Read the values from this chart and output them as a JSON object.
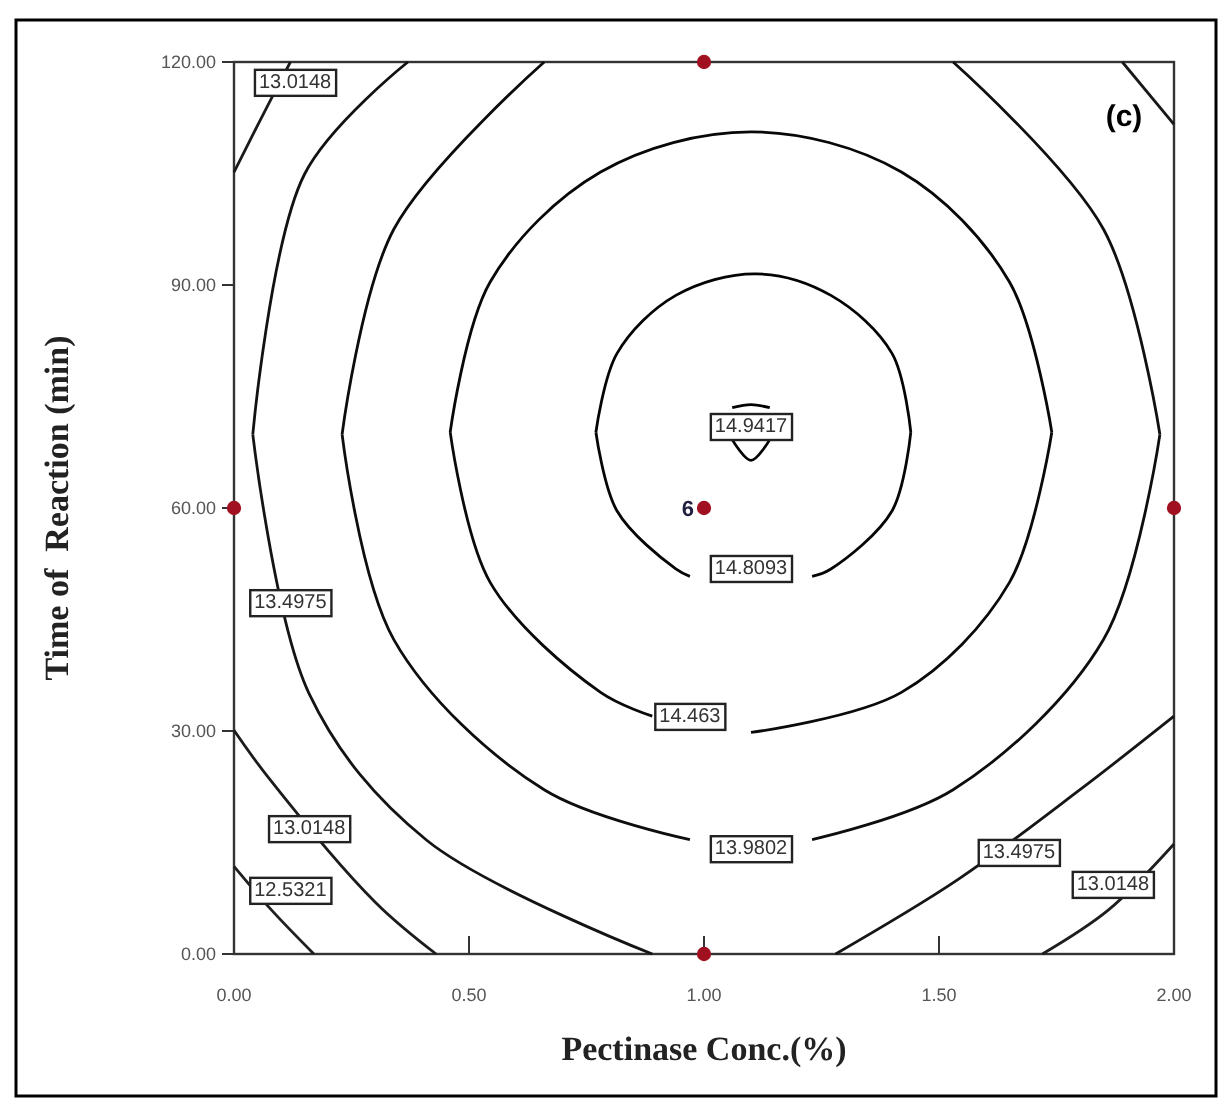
{
  "chart_data": {
    "type": "line",
    "xlabel": "Pectinase Conc.(%)",
    "ylabel": "Time of  Reaction (min)",
    "xlim": [
      0,
      2
    ],
    "xticks": [
      {
        "value": 0,
        "label": "0.00"
      },
      {
        "value": 0.5,
        "label": "0.50"
      },
      {
        "value": 1,
        "label": "1.00"
      },
      {
        "value": 1.5,
        "label": "1.50"
      },
      {
        "value": 2,
        "label": "2.00"
      }
    ],
    "ylim": [
      0,
      120
    ],
    "yticks": [
      {
        "value": 0,
        "label": "0.00"
      },
      {
        "value": 30,
        "label": "30.00"
      },
      {
        "value": 60,
        "label": "60.00"
      },
      {
        "value": 90,
        "label": "90.00"
      },
      {
        "value": 120,
        "label": "120.00"
      }
    ],
    "line_style": "solid",
    "series": [
      {
        "color": "#000000",
        "x": [
          1.06,
          1.1,
          1.14
        ],
        "values": [
          73.5,
          73.9,
          73.5
        ]
      },
      {
        "color": "#020202",
        "x": [
          1.06,
          1.1,
          1.14
        ],
        "values": [
          69.2,
          66.4,
          69.2
        ]
      },
      {
        "color": "#040404",
        "x": [
          0.77,
          0.815,
          0.94,
          1.11,
          1.27,
          1.4,
          1.44
        ],
        "values": [
          70.2,
          80.8,
          88.6,
          91.5,
          88.6,
          80.8,
          70.2
        ]
      },
      {
        "color": "#060606",
        "x": [
          0.77,
          0.815,
          0.94,
          0.97,
          1.11,
          1.23,
          1.27,
          1.4,
          1.44
        ],
        "values": [
          70.2,
          59.6,
          51.8,
          50.8,
          null,
          50.8,
          51.8,
          59.6,
          70.2
        ]
      },
      {
        "color": "#080808",
        "x": [
          0.46,
          0.545,
          0.78,
          1.1,
          1.42,
          1.65,
          1.74
        ],
        "values": [
          70.2,
          90.4,
          105.2,
          110.6,
          105.2,
          90.4,
          70.2
        ]
      },
      {
        "color": "#0a0a0a",
        "x": [
          0.46,
          0.545,
          0.78,
          0.89,
          0.97,
          1.1,
          1.42,
          1.65,
          1.74
        ],
        "values": [
          70.2,
          50,
          35.2,
          32,
          null,
          29.8,
          35.2,
          50,
          70.2
        ]
      },
      {
        "color": "#0c0c0c",
        "x": [
          0.23,
          0.34,
          0.66
        ],
        "values": [
          69.9,
          97.5,
          120
        ]
      },
      {
        "color": "#0e0e0e",
        "x": [
          0.23,
          0.34,
          0.66,
          0.97,
          1.1,
          1.23,
          1.53,
          1.85,
          1.97
        ],
        "values": [
          69.9,
          42.3,
          22.1,
          15.4,
          null,
          15.4,
          22.1,
          42.3,
          69.9
        ]
      },
      {
        "color": "#101010",
        "x": [
          1.53,
          1.85,
          1.97
        ],
        "values": [
          120,
          97.5,
          69.9
        ]
      },
      {
        "color": "#121212",
        "x": [
          0.04,
          0.15,
          0.37
        ],
        "values": [
          69.9,
          104.9,
          120
        ]
      },
      {
        "color": "#141414",
        "x": [
          0.04,
          0.16,
          0.41,
          0.89
        ],
        "values": [
          69.9,
          35,
          15.3,
          0
        ]
      },
      {
        "color": "#161616",
        "x": [
          1.28,
          1.54,
          1.8,
          2
        ],
        "values": [
          0,
          10,
          22.1,
          32
        ]
      },
      {
        "color": "#181818",
        "x": [
          1.89,
          2
        ],
        "values": [
          120,
          111.6
        ]
      },
      {
        "color": "#1a1a1a",
        "x": [
          0,
          0.06,
          0.12
        ],
        "values": [
          105.2,
          112.7,
          120
        ]
      },
      {
        "color": "#1c1c1c",
        "x": [
          0,
          0.07,
          0.3,
          0.43
        ],
        "values": [
          30.1,
          24,
          7,
          0
        ]
      },
      {
        "color": "#1e1e1e",
        "x": [
          1.72,
          1.86,
          2
        ],
        "values": [
          0,
          5.9,
          14.8
        ]
      },
      {
        "color": "#202020",
        "x": [
          0,
          0.08,
          0.17
        ],
        "values": [
          11.8,
          5.9,
          0
        ]
      },
      {
        "type": "scatter",
        "marker": "circle",
        "color": "#a01020",
        "x": [
          0,
          1,
          1,
          1,
          2
        ],
        "values": [
          60,
          0,
          60,
          120,
          60
        ]
      }
    ],
    "annotations": [
      {
        "text": "13.0148",
        "x": 0.13,
        "y": 117.6
      },
      {
        "text": "14.9417",
        "x": 1.1,
        "y": 71.3
      },
      {
        "text": "14.8093",
        "x": 1.1,
        "y": 52.2
      },
      {
        "text": "14.463",
        "x": 0.97,
        "y": 32.3
      },
      {
        "text": "13.9802",
        "x": 1.1,
        "y": 14.5
      },
      {
        "text": "13.4975",
        "x": 0.12,
        "y": 47.6
      },
      {
        "text": "13.0148",
        "x": 0.16,
        "y": 17.2
      },
      {
        "text": "12.5321",
        "x": 0.12,
        "y": 8.9
      },
      {
        "text": "13.4975",
        "x": 1.67,
        "y": 14
      },
      {
        "text": "13.0148",
        "x": 1.87,
        "y": 9.7
      },
      {
        "text": "6",
        "x": 1,
        "y": 60
      },
      "(c)"
    ]
  }
}
